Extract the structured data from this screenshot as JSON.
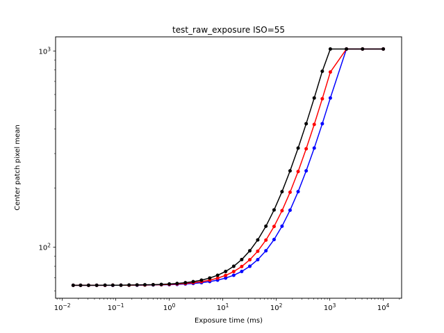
{
  "chart_data": {
    "type": "line",
    "title": "test_raw_exposure ISO=55",
    "xlabel": "Exposure time (ms)",
    "ylabel": "Center patch pixel mean",
    "xscale": "log",
    "yscale": "log",
    "xlim": [
      0.0075,
      22000
    ],
    "ylim": [
      55,
      1180
    ],
    "grid": false,
    "legend_position": "none",
    "marker": "circle",
    "axis_color": "#000000",
    "background_color": "#ffffff",
    "x_tick_values": [
      0.01,
      0.1,
      1,
      10,
      100,
      1000,
      10000
    ],
    "x_tick_exponents": [
      -2,
      -1,
      0,
      1,
      2,
      3,
      4
    ],
    "x_tick_labels": [
      "10⁻²",
      "10⁻¹",
      "10⁰",
      "10¹",
      "10²",
      "10³",
      "10⁴"
    ],
    "y_tick_values": [
      100,
      1000
    ],
    "y_tick_exponents": [
      2,
      3
    ],
    "y_tick_labels": [
      "10²",
      "10³"
    ],
    "x": [
      0.016,
      0.022,
      0.031,
      0.044,
      0.063,
      0.088,
      0.125,
      0.177,
      0.25,
      0.35,
      0.5,
      0.71,
      1.0,
      1.4,
      2.0,
      2.8,
      4.0,
      5.7,
      8.0,
      11.3,
      16,
      22.6,
      32,
      45,
      64,
      91,
      128,
      181,
      256,
      362,
      512,
      724,
      1024,
      2048,
      4096,
      10000
    ],
    "series": [
      {
        "name": "black",
        "color": "#000000",
        "values": [
          64.0,
          64.0,
          64.0,
          64.0,
          64.1,
          64.1,
          64.1,
          64.2,
          64.3,
          64.4,
          64.5,
          64.7,
          65.0,
          65.4,
          66.0,
          66.8,
          68.0,
          69.7,
          72.0,
          75.3,
          80.0,
          86.6,
          96.0,
          109.0,
          128.0,
          155.0,
          192.0,
          245.0,
          320.0,
          426.0,
          576.0,
          788.0,
          1023.0,
          1023.0,
          1023.0,
          1023.0
        ]
      },
      {
        "name": "red",
        "color": "#ff0000",
        "values": [
          64.0,
          64.0,
          64.0,
          64.0,
          64.0,
          64.1,
          64.1,
          64.1,
          64.2,
          64.2,
          64.4,
          64.5,
          64.7,
          65.0,
          65.4,
          66.0,
          66.8,
          68.0,
          69.6,
          71.9,
          75.2,
          79.8,
          86.4,
          95.5,
          108.8,
          127.7,
          153.6,
          190.7,
          243.2,
          317.4,
          422.4,
          570.8,
          780.8,
          1023.0,
          1023.0,
          1023.0
        ]
      },
      {
        "name": "blue",
        "color": "#0000ff",
        "values": [
          64.0,
          64.0,
          64.0,
          64.0,
          64.0,
          64.0,
          64.1,
          64.1,
          64.1,
          64.2,
          64.3,
          64.4,
          64.5,
          64.7,
          65.0,
          65.4,
          66.0,
          66.9,
          68.0,
          69.7,
          72.0,
          75.3,
          80.0,
          86.5,
          96.0,
          109.5,
          128.0,
          154.5,
          192.0,
          245.0,
          320.0,
          426.0,
          576.0,
          1023.0,
          1023.0,
          1023.0
        ]
      }
    ]
  }
}
